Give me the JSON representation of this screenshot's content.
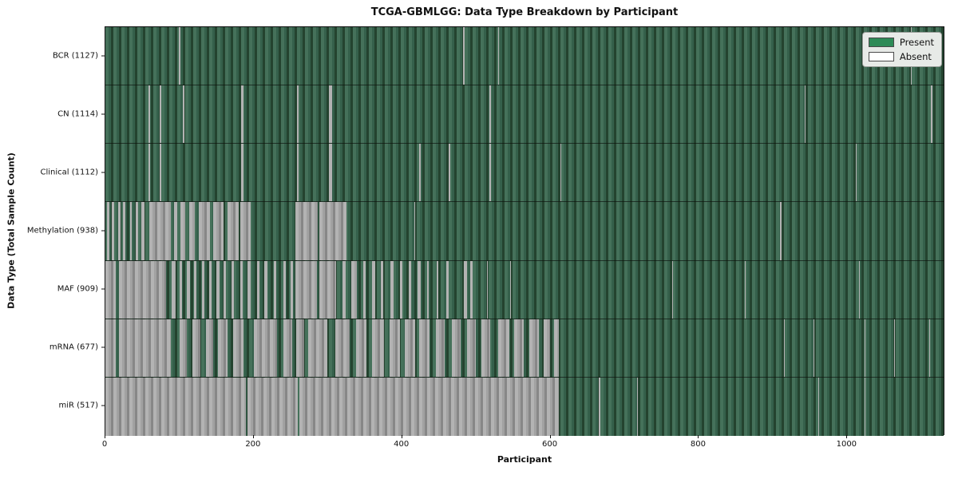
{
  "title": "TCGA-GBMLGG: Data Type Breakdown by Participant",
  "axes": {
    "xlabel": "Participant",
    "ylabel": "Data Type (Total Sample Count)",
    "x_ticks": [
      0,
      200,
      400,
      600,
      800,
      1000
    ]
  },
  "legend": {
    "present_label": "Present",
    "absent_label": "Absent"
  },
  "colors": {
    "present": "#2e8b57",
    "absent": "#ffffff"
  },
  "chart_data": {
    "type": "heatmap",
    "title": "TCGA-GBMLGG: Data Type Breakdown by Participant",
    "xlabel": "Participant",
    "ylabel": "Data Type (Total Sample Count)",
    "x_range": [
      0,
      1132
    ],
    "x_ticks": [
      0,
      200,
      400,
      600,
      800,
      1000
    ],
    "legend_position": "upper right",
    "states": [
      "Present",
      "Absent"
    ],
    "rows": [
      {
        "label": "BCR (1127)",
        "name": "BCR",
        "present_count": 1127,
        "absent_ranges": [
          [
            99,
            101
          ],
          [
            483,
            485
          ],
          [
            530,
            532
          ],
          [
            1088,
            1089
          ]
        ]
      },
      {
        "label": "CN (1114)",
        "name": "CN",
        "present_count": 1114,
        "absent_ranges": [
          [
            58,
            60
          ],
          [
            73,
            75
          ],
          [
            105,
            107
          ],
          [
            183,
            187
          ],
          [
            259,
            261
          ],
          [
            302,
            306
          ],
          [
            519,
            521
          ],
          [
            944,
            946
          ],
          [
            1115,
            1117
          ]
        ]
      },
      {
        "label": "Clinical (1112)",
        "name": "Clinical",
        "present_count": 1112,
        "absent_ranges": [
          [
            58,
            60
          ],
          [
            73,
            75
          ],
          [
            183,
            187
          ],
          [
            259,
            261
          ],
          [
            302,
            306
          ],
          [
            424,
            426
          ],
          [
            464,
            466
          ],
          [
            519,
            521
          ],
          [
            614,
            616
          ],
          [
            1013,
            1015
          ]
        ]
      },
      {
        "label": "Methylation (938)",
        "name": "Methylation",
        "present_count": 938,
        "absent_ranges": [
          [
            2,
            5
          ],
          [
            9,
            12
          ],
          [
            17,
            20
          ],
          [
            24,
            27
          ],
          [
            33,
            36
          ],
          [
            41,
            44
          ],
          [
            49,
            53
          ],
          [
            59,
            88
          ],
          [
            93,
            97
          ],
          [
            101,
            108
          ],
          [
            113,
            121
          ],
          [
            126,
            141
          ],
          [
            146,
            160
          ],
          [
            165,
            180
          ],
          [
            182,
            196
          ],
          [
            257,
            287
          ],
          [
            289,
            326
          ],
          [
            417,
            418
          ],
          [
            911,
            913
          ],
          [
            1014,
            1015
          ]
        ]
      },
      {
        "label": "MAF (909)",
        "name": "MAF",
        "present_count": 909,
        "absent_ranges": [
          [
            0,
            14
          ],
          [
            18,
            82
          ],
          [
            90,
            95
          ],
          [
            100,
            104
          ],
          [
            110,
            114
          ],
          [
            120,
            123
          ],
          [
            130,
            134
          ],
          [
            140,
            143
          ],
          [
            150,
            154
          ],
          [
            160,
            163
          ],
          [
            170,
            174
          ],
          [
            182,
            185
          ],
          [
            192,
            196
          ],
          [
            205,
            208
          ],
          [
            215,
            219
          ],
          [
            228,
            231
          ],
          [
            240,
            244
          ],
          [
            250,
            253
          ],
          [
            257,
            286
          ],
          [
            289,
            312
          ],
          [
            320,
            325
          ],
          [
            332,
            340
          ],
          [
            348,
            352
          ],
          [
            360,
            364
          ],
          [
            372,
            375
          ],
          [
            385,
            389
          ],
          [
            398,
            401
          ],
          [
            410,
            413
          ],
          [
            422,
            426
          ],
          [
            434,
            437
          ],
          [
            447,
            450
          ],
          [
            460,
            464
          ],
          [
            484,
            488
          ],
          [
            493,
            496
          ],
          [
            515,
            516
          ],
          [
            547,
            548
          ],
          [
            765,
            766
          ],
          [
            864,
            865
          ],
          [
            1018,
            1019
          ]
        ]
      },
      {
        "label": "mRNA (677)",
        "name": "mRNA",
        "present_count": 677,
        "absent_ranges": [
          [
            0,
            14
          ],
          [
            18,
            88
          ],
          [
            100,
            110
          ],
          [
            118,
            128
          ],
          [
            136,
            146
          ],
          [
            152,
            165
          ],
          [
            172,
            186
          ],
          [
            200,
            232
          ],
          [
            240,
            252
          ],
          [
            258,
            268
          ],
          [
            274,
            300
          ],
          [
            310,
            330
          ],
          [
            338,
            352
          ],
          [
            360,
            376
          ],
          [
            384,
            398
          ],
          [
            404,
            418
          ],
          [
            424,
            438
          ],
          [
            446,
            458
          ],
          [
            468,
            480
          ],
          [
            488,
            500
          ],
          [
            508,
            520
          ],
          [
            530,
            545
          ],
          [
            552,
            565
          ],
          [
            572,
            585
          ],
          [
            592,
            600
          ],
          [
            606,
            612
          ],
          [
            916,
            918
          ],
          [
            956,
            957
          ],
          [
            1025,
            1026
          ],
          [
            1065,
            1066
          ],
          [
            1113,
            1114
          ]
        ]
      },
      {
        "label": "miR (517)",
        "name": "miR",
        "present_count": 517,
        "absent_ranges": [
          [
            0,
            190
          ],
          [
            192,
            260
          ],
          [
            262,
            612
          ],
          [
            666,
            668
          ],
          [
            718,
            719
          ],
          [
            963,
            964
          ],
          [
            1025,
            1026
          ]
        ]
      }
    ]
  }
}
